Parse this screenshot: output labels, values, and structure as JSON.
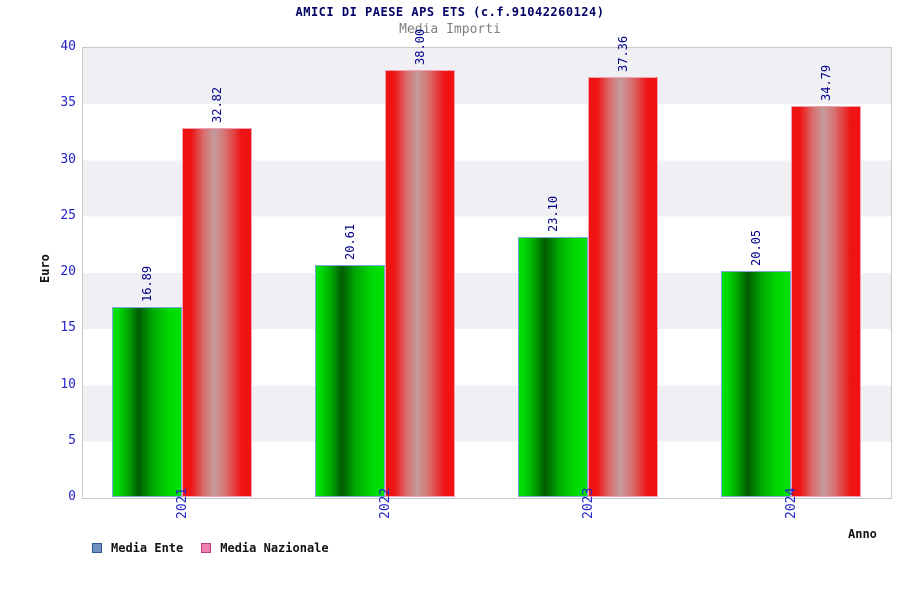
{
  "chart_data": {
    "type": "bar",
    "title": "AMICI DI PAESE APS ETS (c.f.91042260124)",
    "subtitle": "Media Importi",
    "xlabel": "Anno",
    "ylabel": "Euro",
    "categories": [
      "2021",
      "2022",
      "2023",
      "2024"
    ],
    "series": [
      {
        "name": "Media Ente",
        "values": [
          16.89,
          20.61,
          23.1,
          20.05
        ],
        "labels": [
          "16.89",
          "20.61",
          "23.10",
          "20.05"
        ],
        "legend_color": "#7092be",
        "bar_style": "green-gradient"
      },
      {
        "name": "Media Nazionale",
        "values": [
          32.82,
          38.0,
          37.36,
          34.79
        ],
        "labels": [
          "32.82",
          "38.00",
          "37.36",
          "34.79"
        ],
        "legend_color": "#f07fae",
        "bar_style": "red-gradient"
      }
    ],
    "yticks": [
      0,
      5,
      10,
      15,
      20,
      25,
      30,
      35,
      40
    ],
    "ylim": [
      0,
      40
    ],
    "grid": "horizontal-bands",
    "legend_position": "bottom-left",
    "colors": {
      "tick_text": "#2424cc",
      "value_label_text": "#00008b",
      "title_text": "#000066",
      "subtitle_text": "#7d7d7d",
      "band_gray": "#f0f0f4",
      "band_white": "#ffffff"
    }
  }
}
